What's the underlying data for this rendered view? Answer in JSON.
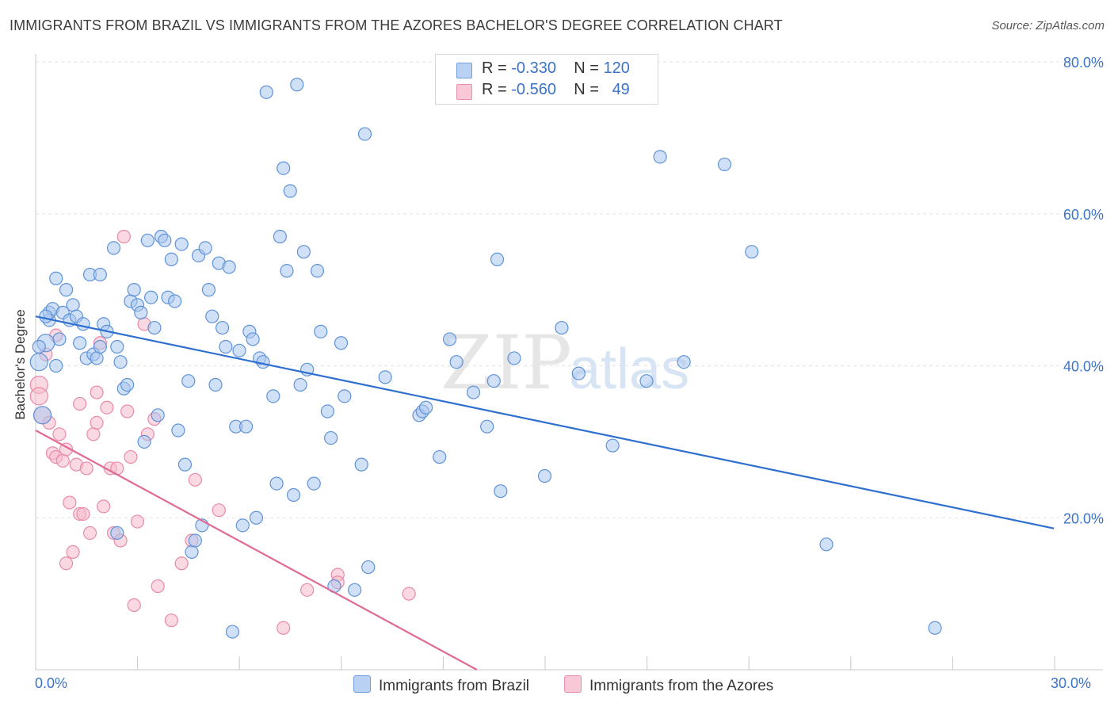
{
  "title": "IMMIGRANTS FROM BRAZIL VS IMMIGRANTS FROM THE AZORES BACHELOR'S DEGREE CORRELATION CHART",
  "source": "Source: ZipAtlas.com",
  "watermark": {
    "zip": "ZIP",
    "atlas": "atlas"
  },
  "legend": {
    "brazil": {
      "r_label": "R =",
      "r_value": "-0.330",
      "n_label": "N =",
      "n_value": "120"
    },
    "azores": {
      "r_label": "R =",
      "r_value": "-0.560",
      "n_label": "N =",
      "n_value": "49"
    }
  },
  "colors": {
    "brazil_fill": "#a9c6ee",
    "brazil_stroke": "#5f93d8",
    "brazil_line": "#2e6fd0",
    "azores_fill": "#f6b9cb",
    "azores_stroke": "#e88aa8",
    "azores_line": "#e06a95",
    "tick_text": "#3b73c8",
    "grid": "#e3e3e3"
  },
  "chart_data": {
    "type": "scatter",
    "title": "IMMIGRANTS FROM BRAZIL VS IMMIGRANTS FROM THE AZORES BACHELOR'S DEGREE CORRELATION CHART",
    "xlabel": "",
    "ylabel": "Bachelor's Degree",
    "xlim": [
      0,
      30
    ],
    "ylim": [
      0,
      80
    ],
    "x_tick_labels": [
      "0.0%",
      "30.0%"
    ],
    "y_ticks": [
      20,
      40,
      60,
      80
    ],
    "y_tick_labels": [
      "20.0%",
      "40.0%",
      "60.0%",
      "80.0%"
    ],
    "legend_position": "top-center",
    "series": [
      {
        "name": "Immigrants from Brazil",
        "trend": {
          "x": [
            0,
            30
          ],
          "y": [
            46.5,
            18.6
          ]
        },
        "points": [
          [
            0.1,
            40.5
          ],
          [
            0.2,
            33.5
          ],
          [
            0.3,
            43.0
          ],
          [
            0.4,
            46.0
          ],
          [
            0.4,
            47.0
          ],
          [
            0.5,
            47.5
          ],
          [
            0.6,
            51.5
          ],
          [
            0.7,
            43.5
          ],
          [
            0.8,
            47.0
          ],
          [
            0.9,
            50.0
          ],
          [
            1.0,
            46.0
          ],
          [
            1.1,
            48.0
          ],
          [
            1.2,
            46.5
          ],
          [
            1.3,
            43.0
          ],
          [
            1.4,
            45.5
          ],
          [
            1.5,
            41.0
          ],
          [
            1.6,
            52.0
          ],
          [
            1.7,
            41.5
          ],
          [
            1.8,
            41.0
          ],
          [
            1.9,
            42.5
          ],
          [
            2.0,
            45.5
          ],
          [
            2.1,
            44.5
          ],
          [
            2.3,
            55.5
          ],
          [
            2.4,
            42.5
          ],
          [
            2.5,
            40.5
          ],
          [
            2.6,
            37.0
          ],
          [
            2.7,
            37.5
          ],
          [
            2.8,
            48.5
          ],
          [
            2.9,
            50.0
          ],
          [
            3.0,
            48.0
          ],
          [
            3.1,
            47.0
          ],
          [
            3.2,
            30.0
          ],
          [
            3.3,
            56.5
          ],
          [
            3.4,
            49.0
          ],
          [
            3.5,
            45.0
          ],
          [
            3.6,
            33.5
          ],
          [
            3.7,
            57.0
          ],
          [
            3.8,
            56.5
          ],
          [
            3.9,
            49.0
          ],
          [
            4.0,
            54.0
          ],
          [
            4.1,
            48.5
          ],
          [
            4.2,
            31.5
          ],
          [
            4.3,
            56.0
          ],
          [
            4.4,
            27.0
          ],
          [
            4.5,
            38.0
          ],
          [
            4.6,
            15.5
          ],
          [
            4.7,
            17.0
          ],
          [
            4.8,
            54.5
          ],
          [
            4.9,
            19.0
          ],
          [
            5.0,
            55.5
          ],
          [
            5.1,
            50.0
          ],
          [
            5.2,
            46.5
          ],
          [
            5.3,
            37.5
          ],
          [
            5.4,
            53.5
          ],
          [
            5.5,
            45.0
          ],
          [
            5.6,
            42.5
          ],
          [
            5.7,
            53.0
          ],
          [
            5.8,
            5.0
          ],
          [
            5.9,
            32.0
          ],
          [
            6.0,
            42.0
          ],
          [
            6.1,
            19.0
          ],
          [
            6.2,
            32.0
          ],
          [
            6.3,
            44.5
          ],
          [
            6.4,
            43.5
          ],
          [
            6.5,
            20.0
          ],
          [
            6.6,
            41.0
          ],
          [
            6.7,
            40.5
          ],
          [
            6.8,
            76.0
          ],
          [
            7.0,
            36.0
          ],
          [
            7.1,
            24.5
          ],
          [
            7.2,
            57.0
          ],
          [
            7.3,
            66.0
          ],
          [
            7.4,
            52.5
          ],
          [
            7.5,
            63.0
          ],
          [
            7.6,
            23.0
          ],
          [
            7.7,
            77.0
          ],
          [
            7.8,
            37.5
          ],
          [
            7.9,
            55.0
          ],
          [
            8.0,
            39.5
          ],
          [
            8.2,
            24.5
          ],
          [
            8.3,
            52.5
          ],
          [
            8.4,
            44.5
          ],
          [
            8.6,
            34.0
          ],
          [
            8.7,
            30.5
          ],
          [
            8.8,
            11.0
          ],
          [
            9.0,
            43.0
          ],
          [
            9.1,
            36.0
          ],
          [
            9.4,
            10.5
          ],
          [
            9.6,
            27.0
          ],
          [
            9.7,
            70.5
          ],
          [
            9.8,
            13.5
          ],
          [
            10.3,
            38.5
          ],
          [
            11.3,
            33.5
          ],
          [
            11.4,
            34.0
          ],
          [
            11.5,
            34.5
          ],
          [
            11.9,
            28.0
          ],
          [
            12.2,
            43.5
          ],
          [
            12.4,
            40.5
          ],
          [
            12.9,
            36.5
          ],
          [
            13.3,
            32.0
          ],
          [
            13.5,
            38.0
          ],
          [
            13.6,
            54.0
          ],
          [
            13.7,
            23.5
          ],
          [
            14.1,
            41.0
          ],
          [
            15.0,
            25.5
          ],
          [
            15.5,
            45.0
          ],
          [
            16.0,
            39.0
          ],
          [
            17.0,
            29.5
          ],
          [
            18.0,
            38.0
          ],
          [
            18.4,
            67.5
          ],
          [
            19.1,
            40.5
          ],
          [
            20.3,
            66.5
          ],
          [
            21.1,
            55.0
          ],
          [
            23.3,
            16.5
          ],
          [
            26.5,
            5.5
          ],
          [
            0.1,
            42.5
          ],
          [
            0.3,
            46.5
          ],
          [
            0.6,
            40.0
          ],
          [
            1.9,
            52.0
          ],
          [
            2.4,
            18.0
          ]
        ]
      },
      {
        "name": "Immigrants from the Azores",
        "trend": {
          "x": [
            0,
            13.0
          ],
          "y": [
            31.5,
            0
          ]
        },
        "points": [
          [
            0.1,
            37.5
          ],
          [
            0.1,
            36.0
          ],
          [
            0.2,
            33.5
          ],
          [
            0.3,
            41.5
          ],
          [
            0.4,
            32.5
          ],
          [
            0.5,
            28.5
          ],
          [
            0.6,
            44.0
          ],
          [
            0.6,
            28.0
          ],
          [
            0.7,
            31.0
          ],
          [
            0.8,
            27.5
          ],
          [
            0.9,
            29.0
          ],
          [
            0.9,
            14.0
          ],
          [
            1.0,
            22.0
          ],
          [
            1.1,
            15.5
          ],
          [
            1.2,
            27.0
          ],
          [
            1.3,
            35.0
          ],
          [
            1.3,
            20.5
          ],
          [
            1.4,
            20.5
          ],
          [
            1.5,
            26.5
          ],
          [
            1.6,
            18.0
          ],
          [
            1.7,
            31.0
          ],
          [
            1.8,
            32.5
          ],
          [
            1.8,
            36.5
          ],
          [
            1.9,
            43.0
          ],
          [
            2.0,
            21.5
          ],
          [
            2.1,
            34.5
          ],
          [
            2.2,
            26.5
          ],
          [
            2.3,
            18.0
          ],
          [
            2.4,
            26.5
          ],
          [
            2.5,
            17.0
          ],
          [
            2.6,
            57.0
          ],
          [
            2.7,
            34.0
          ],
          [
            2.8,
            28.0
          ],
          [
            2.9,
            8.5
          ],
          [
            3.0,
            19.5
          ],
          [
            3.2,
            45.5
          ],
          [
            3.3,
            31.0
          ],
          [
            3.5,
            33.0
          ],
          [
            3.6,
            11.0
          ],
          [
            4.0,
            6.5
          ],
          [
            4.3,
            14.0
          ],
          [
            4.6,
            17.0
          ],
          [
            4.7,
            25.0
          ],
          [
            5.4,
            21.0
          ],
          [
            7.3,
            5.5
          ],
          [
            8.0,
            10.5
          ],
          [
            8.9,
            12.5
          ],
          [
            8.9,
            11.5
          ],
          [
            11.0,
            10.0
          ]
        ]
      }
    ]
  },
  "x_tick_left": "0.0%",
  "x_tick_right": "30.0%",
  "bottom_legend": {
    "brazil": "Immigrants from Brazil",
    "azores": "Immigrants from the Azores"
  }
}
